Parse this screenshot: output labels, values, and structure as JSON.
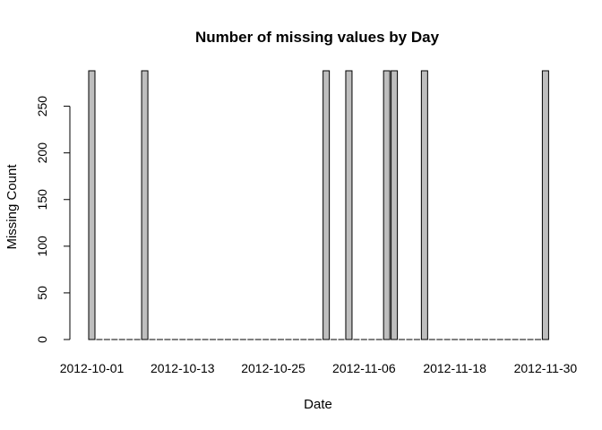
{
  "chart_data": {
    "type": "bar",
    "title": "Number of missing values by Day",
    "xlabel": "Date",
    "ylabel": "Missing Count",
    "ylim": [
      0,
      288
    ],
    "yticks": [
      0,
      50,
      100,
      150,
      200,
      250
    ],
    "xtick_labels": [
      "2012-10-01",
      "2012-10-13",
      "2012-10-25",
      "2012-11-06",
      "2012-11-18",
      "2012-11-30"
    ],
    "bar_color": "#bebebe",
    "grid": false,
    "categories": [
      "2012-10-01",
      "2012-10-02",
      "2012-10-03",
      "2012-10-04",
      "2012-10-05",
      "2012-10-06",
      "2012-10-07",
      "2012-10-08",
      "2012-10-09",
      "2012-10-10",
      "2012-10-11",
      "2012-10-12",
      "2012-10-13",
      "2012-10-14",
      "2012-10-15",
      "2012-10-16",
      "2012-10-17",
      "2012-10-18",
      "2012-10-19",
      "2012-10-20",
      "2012-10-21",
      "2012-10-22",
      "2012-10-23",
      "2012-10-24",
      "2012-10-25",
      "2012-10-26",
      "2012-10-27",
      "2012-10-28",
      "2012-10-29",
      "2012-10-30",
      "2012-10-31",
      "2012-11-01",
      "2012-11-02",
      "2012-11-03",
      "2012-11-04",
      "2012-11-05",
      "2012-11-06",
      "2012-11-07",
      "2012-11-08",
      "2012-11-09",
      "2012-11-10",
      "2012-11-11",
      "2012-11-12",
      "2012-11-13",
      "2012-11-14",
      "2012-11-15",
      "2012-11-16",
      "2012-11-17",
      "2012-11-18",
      "2012-11-19",
      "2012-11-20",
      "2012-11-21",
      "2012-11-22",
      "2012-11-23",
      "2012-11-24",
      "2012-11-25",
      "2012-11-26",
      "2012-11-27",
      "2012-11-28",
      "2012-11-29",
      "2012-11-30"
    ],
    "values": [
      288,
      0,
      0,
      0,
      0,
      0,
      0,
      288,
      0,
      0,
      0,
      0,
      0,
      0,
      0,
      0,
      0,
      0,
      0,
      0,
      0,
      0,
      0,
      0,
      0,
      0,
      0,
      0,
      0,
      0,
      0,
      288,
      0,
      0,
      288,
      0,
      0,
      0,
      0,
      288,
      288,
      0,
      0,
      0,
      288,
      0,
      0,
      0,
      0,
      0,
      0,
      0,
      0,
      0,
      0,
      0,
      0,
      0,
      0,
      0,
      288
    ]
  }
}
